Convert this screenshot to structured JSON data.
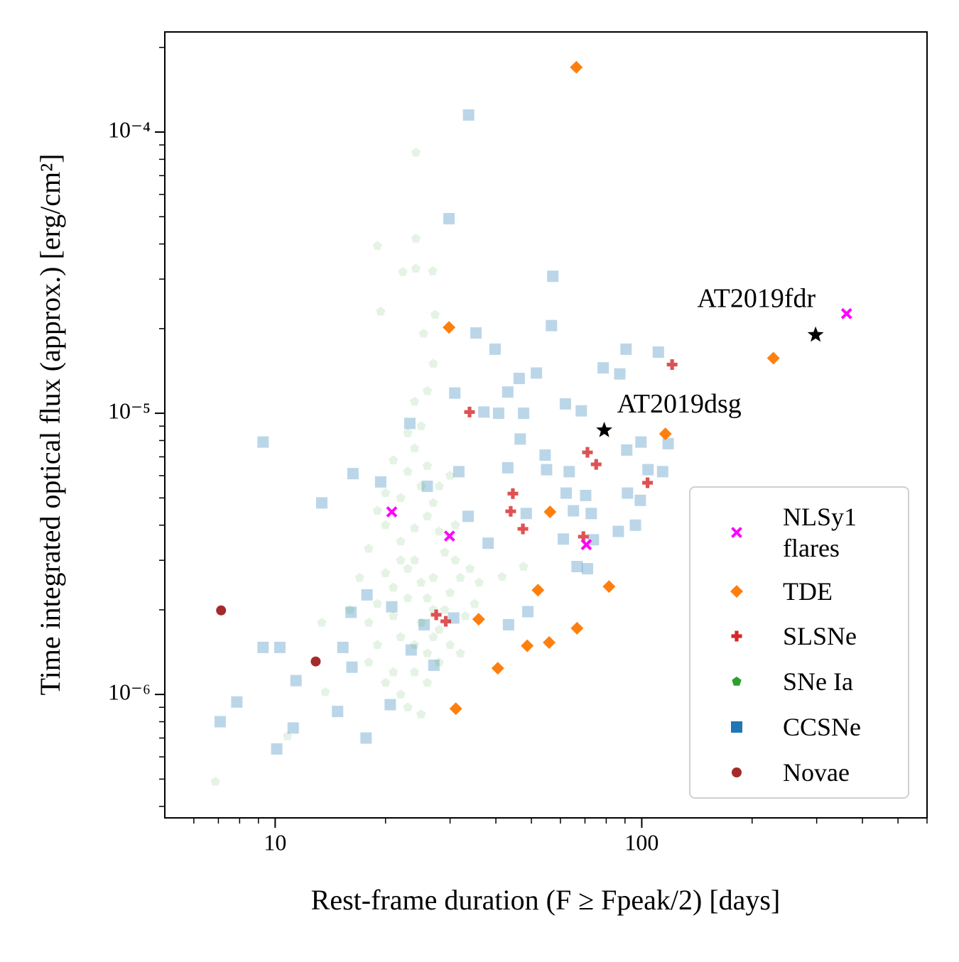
{
  "chart_data": {
    "type": "scatter",
    "x_label": "Rest-frame duration (F ≥ Fpeak/2) [days]",
    "y_label": "Time integrated optical flux (approx.) [erg/cm²]",
    "x_log": true,
    "y_log": true,
    "xlim": [
      5,
      600
    ],
    "ylim": [
      3.64e-07,
      0.000227
    ],
    "xticks": [
      10,
      100
    ],
    "xticks_minor": [
      6,
      7,
      8,
      9,
      20,
      30,
      40,
      50,
      60,
      70,
      80,
      90,
      200,
      300,
      400,
      500,
      600
    ],
    "yticks": [
      {
        "value": 1e-06,
        "label": "10⁻⁶"
      },
      {
        "value": 1e-05,
        "label": "10⁻⁵"
      },
      {
        "value": 0.0001,
        "label": "10⁻⁴"
      }
    ],
    "yticks_minor": [
      4e-07,
      5e-07,
      6e-07,
      7e-07,
      8e-07,
      9e-07,
      2e-06,
      3e-06,
      4e-06,
      5e-06,
      6e-06,
      7e-06,
      8e-06,
      9e-06,
      2e-05,
      3e-05,
      4e-05,
      5e-05,
      6e-05,
      7e-05,
      8e-05,
      9e-05,
      0.0002
    ],
    "legend": "lower right",
    "series": [
      {
        "name": "NLSy1 flares",
        "color": "#ff00ff",
        "marker": "x",
        "alpha": 1,
        "x": [
          20.8,
          29.9,
          70.6,
          362
        ],
        "values": [
          4.46e-06,
          3.66e-06,
          3.41e-06,
          2.26e-05
        ]
      },
      {
        "name": "TDE",
        "color": "#ff7f0e",
        "marker": "D",
        "alpha": 1,
        "x": [
          66.3,
          29.8,
          228.6,
          116,
          56.2,
          52.1,
          81.4,
          35.9,
          66.6,
          55.9,
          48.7,
          40.5,
          31.1
        ],
        "values": [
          0.00017,
          2.02e-05,
          1.57e-05,
          8.45e-06,
          4.46e-06,
          2.35e-06,
          2.42e-06,
          1.85e-06,
          1.72e-06,
          1.53e-06,
          1.49e-06,
          1.24e-06,
          8.9e-07
        ]
      },
      {
        "name": "SLSNe",
        "color": "#d62728",
        "marker": "P",
        "alpha": 0.8,
        "x": [
          121,
          33.9,
          71.1,
          75.1,
          103.7,
          44.5,
          43.9,
          47.4,
          69.3,
          27.5,
          29.2
        ],
        "values": [
          1.49e-05,
          1.01e-05,
          7.26e-06,
          6.58e-06,
          5.66e-06,
          5.18e-06,
          4.48e-06,
          3.88e-06,
          3.64e-06,
          1.92e-06,
          1.82e-06
        ]
      },
      {
        "name": "SNe Ia",
        "color": "#2ca02c",
        "marker": "p",
        "alpha": 0.12,
        "x": [
          24.2,
          24.2,
          19.0,
          26.9,
          22.3,
          24.2,
          19.4,
          27.3,
          25.4,
          6.87,
          13.4,
          13.7,
          47.6,
          41.6,
          10.8,
          20,
          22,
          24,
          25,
          26,
          27,
          23,
          21,
          19,
          18,
          22,
          24,
          26,
          28,
          30,
          32,
          29,
          31,
          27,
          25,
          23,
          21,
          20,
          19,
          18,
          17,
          16,
          18,
          20,
          22,
          24,
          26,
          28,
          30,
          33,
          35,
          34,
          28,
          26,
          24,
          25,
          26,
          27,
          24,
          23,
          22,
          25,
          27,
          29,
          23,
          21,
          20,
          24,
          28,
          31,
          36,
          19,
          21,
          23,
          25,
          27,
          32,
          22,
          26,
          30
        ],
        "values": [
          8.45e-05,
          4.18e-05,
          3.94e-05,
          3.2e-05,
          3.18e-05,
          3.27e-05,
          2.3e-05,
          2.24e-05,
          1.92e-05,
          4.9e-07,
          1.8e-06,
          1.02e-06,
          2.85e-06,
          2.62e-06,
          7.1e-07,
          4e-06,
          3.5e-06,
          3e-06,
          2.5e-06,
          2.2e-06,
          2e-06,
          2.8e-06,
          2.4e-06,
          2.1e-06,
          1.8e-06,
          1.6e-06,
          1.5e-06,
          1.4e-06,
          1.7e-06,
          2.3e-06,
          2.6e-06,
          3.2e-06,
          4e-06,
          4.8e-06,
          5.5e-06,
          6.2e-06,
          6.8e-06,
          5.2e-06,
          4.5e-06,
          3.3e-06,
          2.6e-06,
          2e-06,
          1.3e-06,
          1.1e-06,
          1e-06,
          1.2e-06,
          1.1e-06,
          1.3e-06,
          1.5e-06,
          1.9e-06,
          2.1e-06,
          2.8e-06,
          3.8e-06,
          4.3e-06,
          7.5e-06,
          9e-06,
          1.2e-05,
          1.5e-05,
          1.1e-05,
          8.5e-06,
          3e-06,
          1.8e-06,
          2.6e-06,
          2e-06,
          2.2e-06,
          1.9e-06,
          2.7e-06,
          3.9e-06,
          5.5e-06,
          3e-06,
          2.5e-06,
          1.5e-06,
          1.2e-06,
          9e-07,
          8.5e-07,
          1.6e-06,
          1.4e-06,
          5e-06,
          6.5e-06,
          6e-06
        ]
      },
      {
        "name": "CCSNe",
        "color": "#1f77b4",
        "marker": "s",
        "alpha": 0.3,
        "x": [
          33.7,
          29.8,
          57.2,
          35.3,
          56.7,
          39.8,
          90.6,
          111,
          51.6,
          78.5,
          87.1,
          46.3,
          30.9,
          43.1,
          61.9,
          37.1,
          40.7,
          47.6,
          68.4,
          23.3,
          46.6,
          54.5,
          91.0,
          99.5,
          118,
          16.3,
          19.4,
          26.0,
          31.7,
          43.1,
          55.0,
          63.4,
          104,
          114,
          70.3,
          91.4,
          62.2,
          99.1,
          13.4,
          9.27,
          33.6,
          48.4,
          65.1,
          72.8,
          86.3,
          96.1,
          38.1,
          61.1,
          73.8,
          66.6,
          71.1,
          17.8,
          16.1,
          20.8,
          25.5,
          30.7,
          48.9,
          43.3,
          9.27,
          10.3,
          15.3,
          11.4,
          16.2,
          14.8,
          11.2,
          7.86,
          7.08,
          10.1,
          17.7,
          20.6,
          23.5,
          27.1
        ],
        "values": [
          0.000115,
          4.92e-05,
          3.07e-05,
          1.93e-05,
          2.05e-05,
          1.69e-05,
          1.69e-05,
          1.65e-05,
          1.39e-05,
          1.45e-05,
          1.38e-05,
          1.33e-05,
          1.18e-05,
          1.19e-05,
          1.08e-05,
          1.01e-05,
          1e-05,
          1e-05,
          1.02e-05,
          9.2e-06,
          8.1e-06,
          7.1e-06,
          7.4e-06,
          7.9e-06,
          7.8e-06,
          6.1e-06,
          5.7e-06,
          5.5e-06,
          6.2e-06,
          6.4e-06,
          6.3e-06,
          6.2e-06,
          6.3e-06,
          6.2e-06,
          5.1e-06,
          5.2e-06,
          5.2e-06,
          4.9e-06,
          4.8e-06,
          7.9e-06,
          4.3e-06,
          4.4e-06,
          4.5e-06,
          4.4e-06,
          3.8e-06,
          4e-06,
          3.45e-06,
          3.57e-06,
          3.55e-06,
          2.85e-06,
          2.8e-06,
          2.26e-06,
          1.96e-06,
          2.05e-06,
          1.77e-06,
          1.87e-06,
          1.97e-06,
          1.77e-06,
          1.47e-06,
          1.47e-06,
          1.47e-06,
          1.12e-06,
          1.25e-06,
          8.7e-07,
          7.6e-07,
          9.4e-07,
          8e-07,
          6.4e-07,
          7e-07,
          9.2e-07,
          1.44e-06,
          1.27e-06
        ]
      },
      {
        "name": "Novae",
        "color": "#a52a2a",
        "marker": "o",
        "alpha": 1,
        "x": [
          7.12,
          12.9
        ],
        "values": [
          1.99e-06,
          1.31e-06
        ]
      }
    ],
    "annotations": [
      {
        "text": "AT2019fdr",
        "x": 298,
        "y": 1.9e-05,
        "color": "#000000",
        "marker": "*"
      },
      {
        "text": "AT2019dsg",
        "x": 79,
        "y": 8.7e-06,
        "color": "#000000",
        "marker": "*"
      }
    ]
  }
}
